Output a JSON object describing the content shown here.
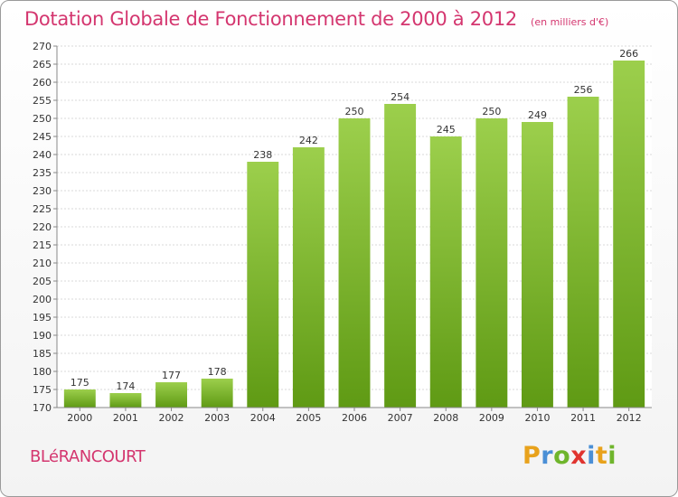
{
  "header": {
    "title": "Dotation Globale de Fonctionnement de 2000 à 2012",
    "subtitle": "(en milliers d'€)"
  },
  "town": "BLéRANCOURT",
  "logo": {
    "text": "Proxiti",
    "letters": [
      {
        "ch": "P",
        "color": "#e8a21c"
      },
      {
        "ch": "r",
        "color": "#4a8fd6"
      },
      {
        "ch": "o",
        "color": "#6fb52c"
      },
      {
        "ch": "x",
        "color": "#e0342f"
      },
      {
        "ch": "i",
        "color": "#4a8fd6"
      },
      {
        "ch": "t",
        "color": "#e8a21c"
      },
      {
        "ch": "i",
        "color": "#6fb52c"
      }
    ]
  },
  "chart_data": {
    "type": "bar",
    "title": "Dotation Globale de Fonctionnement de 2000 à 2012",
    "subtitle": "(en milliers d'€)",
    "categories": [
      "2000",
      "2001",
      "2002",
      "2003",
      "2004",
      "2005",
      "2006",
      "2007",
      "2008",
      "2009",
      "2010",
      "2011",
      "2012"
    ],
    "values": [
      175,
      174,
      177,
      178,
      238,
      242,
      250,
      254,
      245,
      250,
      249,
      256,
      266
    ],
    "ylim": [
      170,
      270
    ],
    "ytick_step": 5,
    "grid": true,
    "legend": "none",
    "bar_color_top": "#9ccf4c",
    "bar_color_bottom": "#5f9a14"
  }
}
